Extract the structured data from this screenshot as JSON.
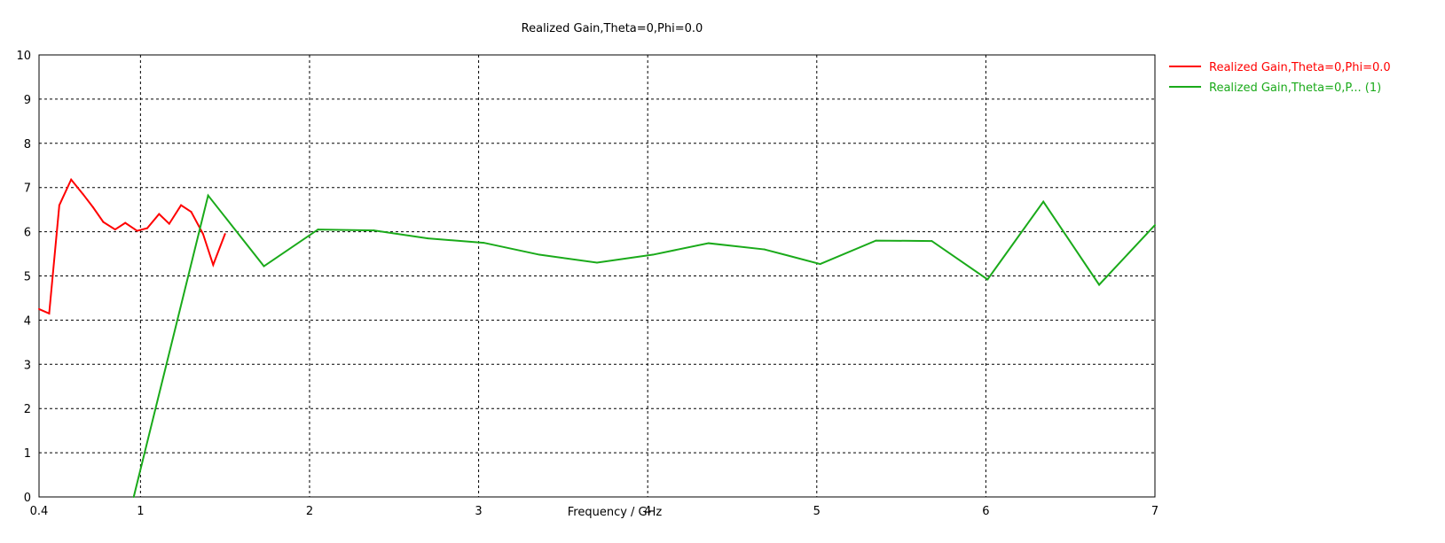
{
  "chart_data": {
    "type": "line",
    "title": "Realized Gain,Theta=0,Phi=0.0",
    "xlabel": "Frequency / GHz",
    "ylabel": "",
    "xlim": [
      0.4,
      7
    ],
    "ylim": [
      0,
      10
    ],
    "x_ticks": [
      0.4,
      1,
      2,
      3,
      4,
      5,
      6,
      7
    ],
    "x_tick_labels": [
      "0.4",
      "1",
      "2",
      "3",
      "4",
      "5",
      "6",
      "7"
    ],
    "y_ticks": [
      0,
      1,
      2,
      3,
      4,
      5,
      6,
      7,
      8,
      9,
      10
    ],
    "y_tick_labels": [
      "0",
      "1",
      "2",
      "3",
      "4",
      "5",
      "6",
      "7",
      "8",
      "9",
      "10"
    ],
    "grid": true,
    "legend_position": "right",
    "series": [
      {
        "name": "Realized Gain,Theta=0,Phi=0.0",
        "color": "#ff0000",
        "x": [
          0.4,
          0.46,
          0.52,
          0.59,
          0.66,
          0.72,
          0.78,
          0.85,
          0.91,
          0.98,
          1.04,
          1.11,
          1.17,
          1.24,
          1.3,
          1.37,
          1.43,
          1.5
        ],
        "y": [
          4.25,
          4.15,
          6.6,
          7.18,
          6.85,
          6.55,
          6.22,
          6.05,
          6.2,
          6.02,
          6.08,
          6.4,
          6.18,
          6.6,
          6.45,
          5.95,
          5.25,
          5.95
        ]
      },
      {
        "name": "Realized Gain,Theta=0,P... (1)",
        "color": "#1aaa1a",
        "x": [
          0.96,
          1.4,
          1.73,
          2.05,
          2.38,
          2.7,
          3.03,
          3.36,
          3.7,
          4.03,
          4.36,
          4.69,
          5.02,
          5.35,
          5.68,
          6.01,
          6.34,
          6.67,
          7.0
        ],
        "y": [
          0.0,
          6.82,
          5.22,
          6.05,
          6.03,
          5.85,
          5.75,
          5.48,
          5.3,
          5.48,
          5.74,
          5.6,
          5.27,
          5.8,
          5.79,
          4.92,
          6.68,
          4.8,
          6.15
        ]
      }
    ]
  }
}
